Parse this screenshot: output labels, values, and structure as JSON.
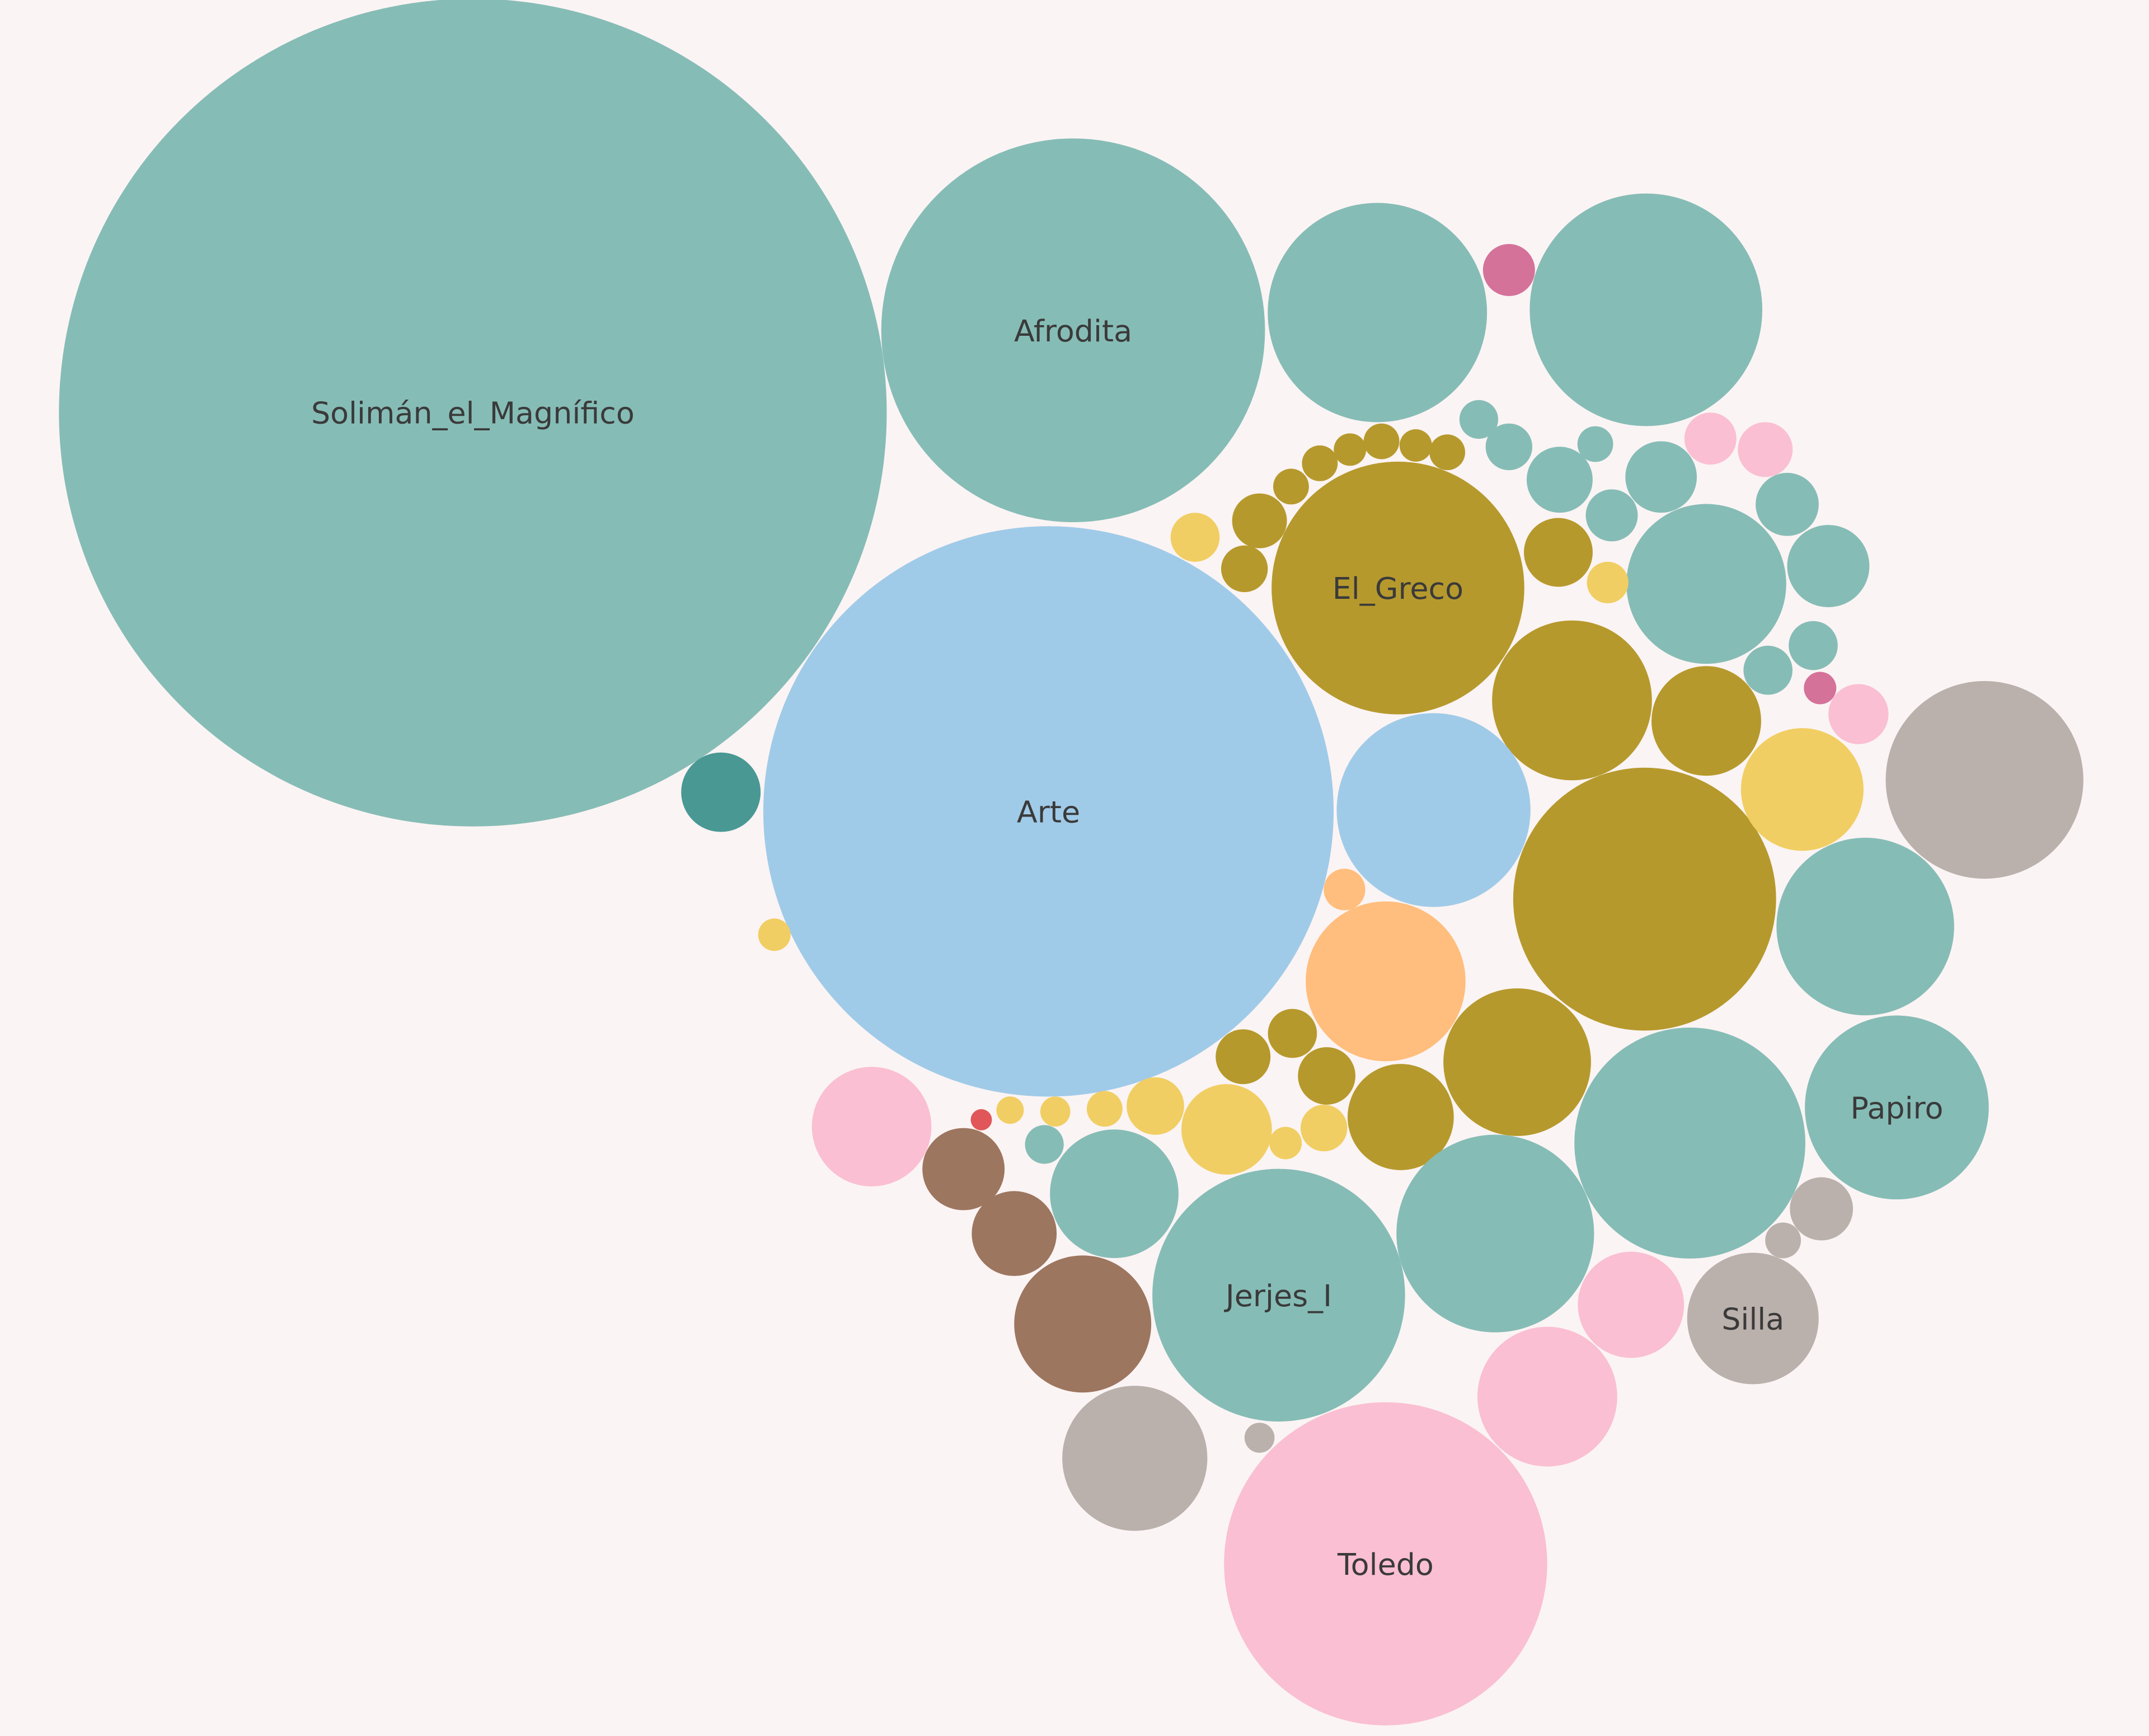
{
  "chart_data": {
    "type": "bubble",
    "categories": [
      "Solimán_el_Magnífico",
      "Afrodita",
      null,
      null,
      null,
      "Arte",
      null,
      "El_Greco",
      null,
      null,
      null,
      null,
      null,
      null,
      null,
      null,
      "Papiro",
      null,
      null,
      null,
      null,
      null,
      "Jerjes_I",
      null,
      null,
      null,
      null,
      null,
      null,
      "Toledo",
      null,
      null,
      "Silla",
      null,
      null,
      null,
      null,
      null,
      null,
      null,
      null,
      null,
      null,
      null,
      null,
      null,
      null,
      null,
      null,
      null,
      null,
      null,
      null,
      null,
      null,
      null,
      null,
      null,
      null,
      null,
      null,
      null,
      null,
      null,
      null,
      null,
      null,
      null,
      null,
      null,
      null,
      null,
      null,
      null,
      null
    ],
    "values": [
      912,
      196,
      64,
      72,
      3.6,
      433,
      8.4,
      85,
      34,
      16,
      50,
      92,
      34,
      20,
      52,
      42,
      45,
      71,
      34,
      29,
      15,
      52,
      85,
      22,
      25,
      9.6,
      9,
      19,
      28,
      139,
      26,
      15,
      23,
      5.3,
      9,
      5.3,
      6.8,
      6.3,
      5.8,
      4.8,
      4,
      3.6,
      10.9,
      4.4,
      4,
      2.9,
      3.2,
      4.4,
      4,
      3.2,
      1.4,
      3.2,
      3.2,
      3.6,
      2.3,
      2.3,
      2.9,
      2,
      0.6,
      2.9,
      2,
      1.7,
      1.4,
      1.2,
      1.7,
      1.4,
      1.7,
      1.7,
      1.4,
      1.7,
      1.4,
      1.7,
      1.2,
      1.0,
      1.7
    ],
    "colors": [
      "#86bcb6",
      "#86bcb6",
      "#86bcb6",
      "#86bcb6",
      "#d4729a",
      "#a0cbe8",
      "#499894",
      "#b6992d",
      "#b6992d",
      "#b6992d",
      "#a0cbe8",
      "#b6992d",
      "#86bcb6",
      "#f1ce63",
      "#bab0ac",
      "#86bcb6",
      "#86bcb6",
      "#86bcb6",
      "#ffbe7d",
      "#b6992d",
      "#b6992d",
      "#86bcb6",
      "#86bcb6",
      "#86bcb6",
      "#9d7660",
      "#9d7660",
      "#9d7660",
      "#fabfd2",
      "#bab0ac",
      "#fabfd2",
      "#fabfd2",
      "#fabfd2",
      "#bab0ac",
      "#bab0ac",
      "#86bcb6",
      "#86bcb6",
      "#86bcb6",
      "#b6992d",
      "#86bcb6",
      "#fabfd2",
      "#fabfd2",
      "#fabfd2",
      "#f1ce63",
      "#f1ce63",
      "#b6992d",
      "#b6992d",
      "#b6992d",
      "#b6992d",
      "#b6992d",
      "#f1ce63",
      "#d4729a",
      "#86bcb6",
      "#86bcb6",
      "#86bcb6",
      "#f1ce63",
      "#ffbe7d",
      "#f1ce63",
      "#86bcb6",
      "#e15759",
      "#86bcb6",
      "#86bcb6",
      "#86bcb6",
      "#f1ce63",
      "#bab0ac",
      "#bab0ac",
      "#f1ce63",
      "#b6992d",
      "#b6992d",
      "#b6992d",
      "#b6992d",
      "#b6992d",
      "#b6992d",
      "#f1ce63",
      "#f1ce63",
      "#f1ce63"
    ]
  }
}
